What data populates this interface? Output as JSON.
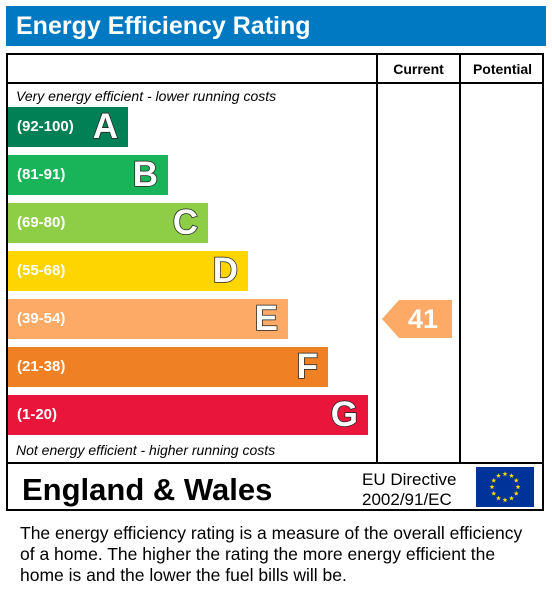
{
  "header": {
    "title": "Energy Efficiency Rating"
  },
  "columns": {
    "current": "Current",
    "potential": "Potential"
  },
  "captions": {
    "top": "Very energy efficient - lower running costs",
    "bottom": "Not energy efficient - higher running costs"
  },
  "footer": {
    "country": "England & Wales",
    "directive_line1": "EU Directive",
    "directive_line2": "2002/91/EC"
  },
  "description": "The energy efficiency rating is a measure of the overall efficiency of a home.  The higher the rating the more energy efficient the home is and the lower the fuel bills will be.",
  "chart_data": {
    "type": "bar",
    "title": "Energy Efficiency Rating",
    "categories": [
      "A",
      "B",
      "C",
      "D",
      "E",
      "F",
      "G"
    ],
    "ranges": [
      "(92-100)",
      "(81-91)",
      "(69-80)",
      "(55-68)",
      "(39-54)",
      "(21-38)",
      "(1-20)"
    ],
    "colors": [
      "#008054",
      "#19b459",
      "#8dce46",
      "#ffd500",
      "#fcaa65",
      "#ef8023",
      "#e9153b"
    ],
    "current": {
      "value": 41,
      "band": "E",
      "color": "#fcaa65"
    },
    "potential": null
  }
}
